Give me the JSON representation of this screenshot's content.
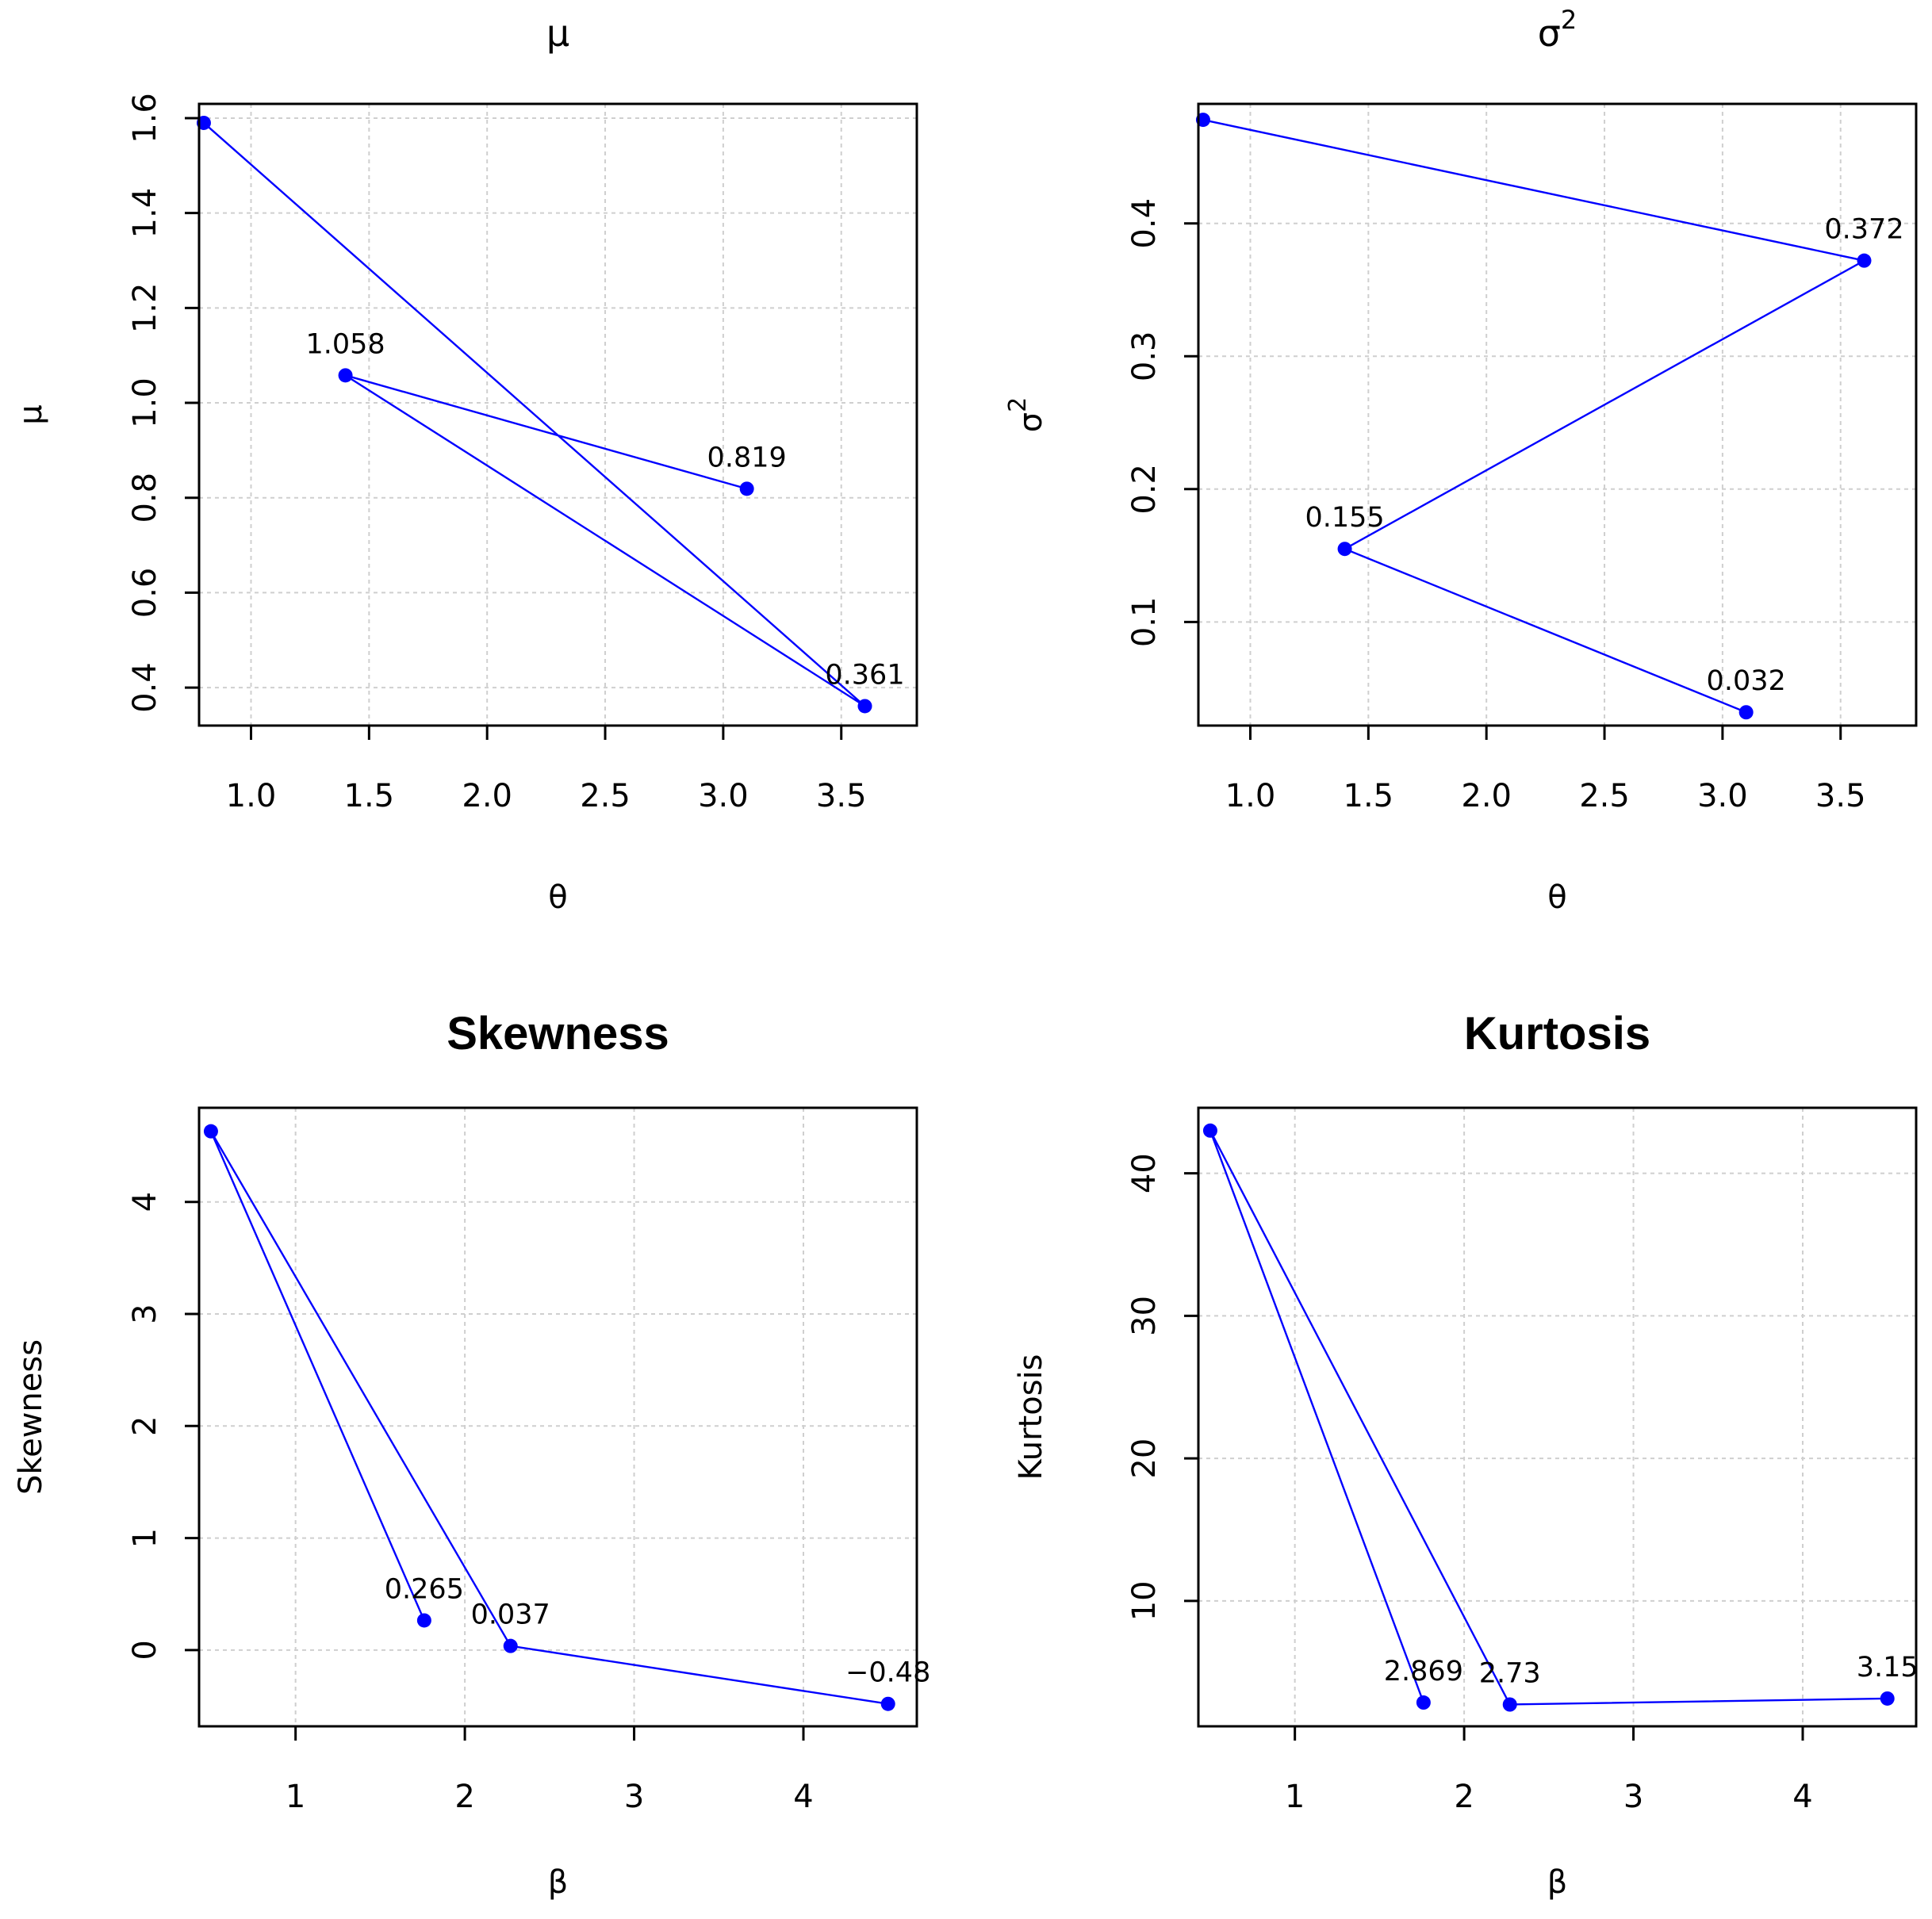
{
  "chart_data": [
    {
      "type": "line",
      "title": "μ",
      "title_super": "",
      "title_bold": false,
      "xlabel": "θ",
      "ylabel": "μ",
      "ylabel_super": "",
      "xlim": [
        0.78,
        3.82
      ],
      "ylim": [
        0.32,
        1.63
      ],
      "xticks": [
        1.0,
        1.5,
        2.0,
        2.5,
        3.0,
        3.5
      ],
      "xtick_labels": [
        "1.0",
        "1.5",
        "2.0",
        "2.5",
        "3.0",
        "3.5"
      ],
      "yticks": [
        0.4,
        0.6,
        0.8,
        1.0,
        1.2,
        1.4,
        1.6
      ],
      "ytick_labels": [
        "0.4",
        "0.6",
        "0.8",
        "1.0",
        "1.2",
        "1.4",
        "1.6"
      ],
      "grid": true,
      "series": [
        {
          "name": "μ",
          "color": "#0000ff",
          "x": [
            0.8,
            3.6,
            1.4,
            3.1
          ],
          "y": [
            1.59,
            0.361,
            1.058,
            0.819
          ],
          "labels": [
            "",
            "0.361",
            "1.058",
            "0.819"
          ]
        }
      ]
    },
    {
      "type": "line",
      "title": "σ",
      "title_super": "2",
      "title_bold": false,
      "xlabel": "θ",
      "ylabel": "σ",
      "ylabel_super": "2",
      "xlim": [
        0.78,
        3.82
      ],
      "ylim": [
        0.022,
        0.49
      ],
      "xticks": [
        1.0,
        1.5,
        2.0,
        2.5,
        3.0,
        3.5
      ],
      "xtick_labels": [
        "1.0",
        "1.5",
        "2.0",
        "2.5",
        "3.0",
        "3.5"
      ],
      "yticks": [
        0.1,
        0.2,
        0.3,
        0.4
      ],
      "ytick_labels": [
        "0.1",
        "0.2",
        "0.3",
        "0.4"
      ],
      "grid": true,
      "series": [
        {
          "name": "σ2",
          "color": "#0000ff",
          "x": [
            0.8,
            3.6,
            1.4,
            3.1
          ],
          "y": [
            0.478,
            0.372,
            0.155,
            0.032
          ],
          "labels": [
            "",
            "0.372",
            "0.155",
            "0.032"
          ]
        }
      ]
    },
    {
      "type": "line",
      "title": "Skewness",
      "title_super": "",
      "title_bold": true,
      "xlabel": "β",
      "ylabel": "Skewness",
      "ylabel_super": "",
      "xlim": [
        0.43,
        4.67
      ],
      "ylim": [
        -0.68,
        4.84
      ],
      "xticks": [
        1,
        2,
        3,
        4
      ],
      "xtick_labels": [
        "1",
        "2",
        "3",
        "4"
      ],
      "yticks": [
        0,
        1,
        2,
        3,
        4
      ],
      "ytick_labels": [
        "0",
        "1",
        "2",
        "3",
        "4"
      ],
      "grid": true,
      "series": [
        {
          "name": "Skewness",
          "color": "#0000ff",
          "x": [
            1.76,
            0.5,
            2.27,
            4.5
          ],
          "y": [
            0.265,
            4.63,
            0.037,
            -0.48
          ],
          "labels": [
            "0.265",
            "",
            "0.037",
            "−0.48"
          ]
        }
      ]
    },
    {
      "type": "line",
      "title": "Kurtosis",
      "title_super": "",
      "title_bold": true,
      "xlabel": "β",
      "ylabel": "Kurtosis",
      "ylabel_super": "",
      "xlim": [
        0.43,
        4.67
      ],
      "ylim": [
        1.2,
        44.6
      ],
      "xticks": [
        1,
        2,
        3,
        4
      ],
      "xtick_labels": [
        "1",
        "2",
        "3",
        "4"
      ],
      "yticks": [
        10,
        20,
        30,
        40
      ],
      "ytick_labels": [
        "10",
        "20",
        "30",
        "40"
      ],
      "grid": true,
      "series": [
        {
          "name": "Kurtosis",
          "color": "#0000ff",
          "x": [
            1.76,
            0.5,
            2.27,
            4.5
          ],
          "y": [
            2.869,
            43.0,
            2.73,
            3.15
          ],
          "labels": [
            "2.869",
            "",
            "2.73",
            "3.15"
          ]
        }
      ]
    }
  ]
}
